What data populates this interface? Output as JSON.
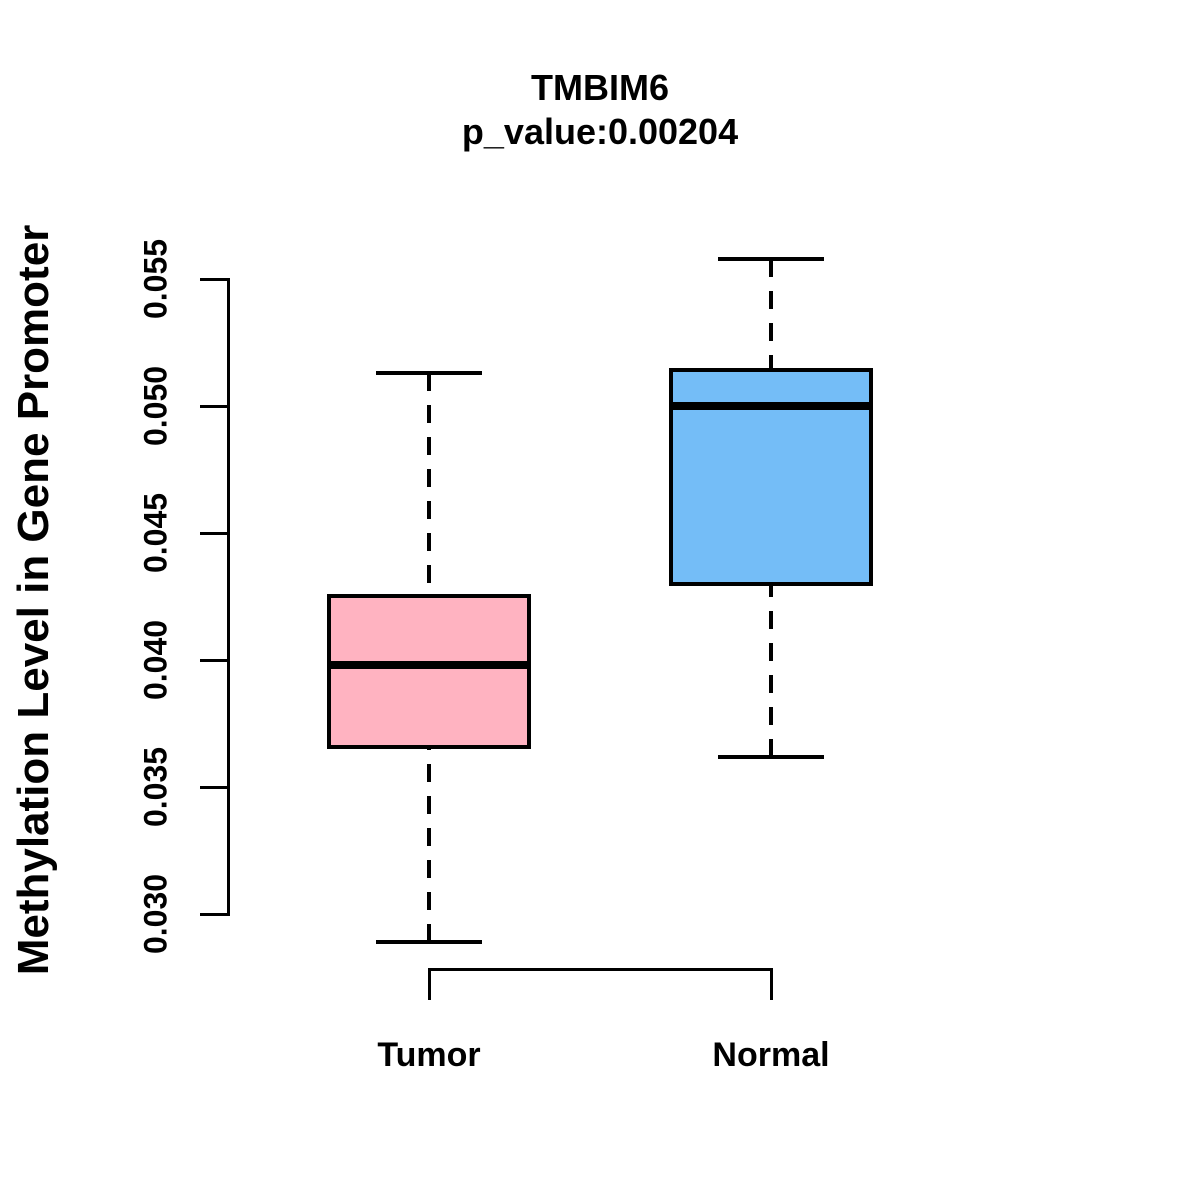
{
  "title": {
    "gene": "TMBIM6",
    "subtitle": "p_value:0.00204"
  },
  "y_axis": {
    "label": "Methylation Level in Gene Promoter",
    "tick_labels": [
      "0.030",
      "0.035",
      "0.040",
      "0.045",
      "0.050",
      "0.055"
    ]
  },
  "chart_data": {
    "type": "boxplot",
    "title": "TMBIM6",
    "subtitle": "p_value:0.00204",
    "ylabel": "Methylation Level in Gene Promoter",
    "xlabel": "",
    "ylim": [
      0.03,
      0.055
    ],
    "yticks": [
      0.03,
      0.035,
      0.04,
      0.045,
      0.05,
      0.055
    ],
    "ytick_labels": [
      "0.030",
      "0.035",
      "0.040",
      "0.045",
      "0.050",
      "0.055"
    ],
    "categories": [
      "Tumor",
      "Normal"
    ],
    "grid": false,
    "legend": "none",
    "series": [
      {
        "name": "Tumor",
        "color": "#FFB3C1",
        "whisker_low": 0.0289,
        "q1": 0.0365,
        "median": 0.0398,
        "q3": 0.0426,
        "whisker_high": 0.0513,
        "outliers": []
      },
      {
        "name": "Normal",
        "color": "#74BDF7",
        "whisker_low": 0.0362,
        "q1": 0.0429,
        "median": 0.05,
        "q3": 0.0515,
        "whisker_high": 0.0558,
        "outliers": []
      }
    ]
  },
  "colors": {
    "ink": "#000000",
    "background": "#FFFFFF",
    "tumor_fill": "#FFB3C1",
    "normal_fill": "#74BDF7"
  }
}
